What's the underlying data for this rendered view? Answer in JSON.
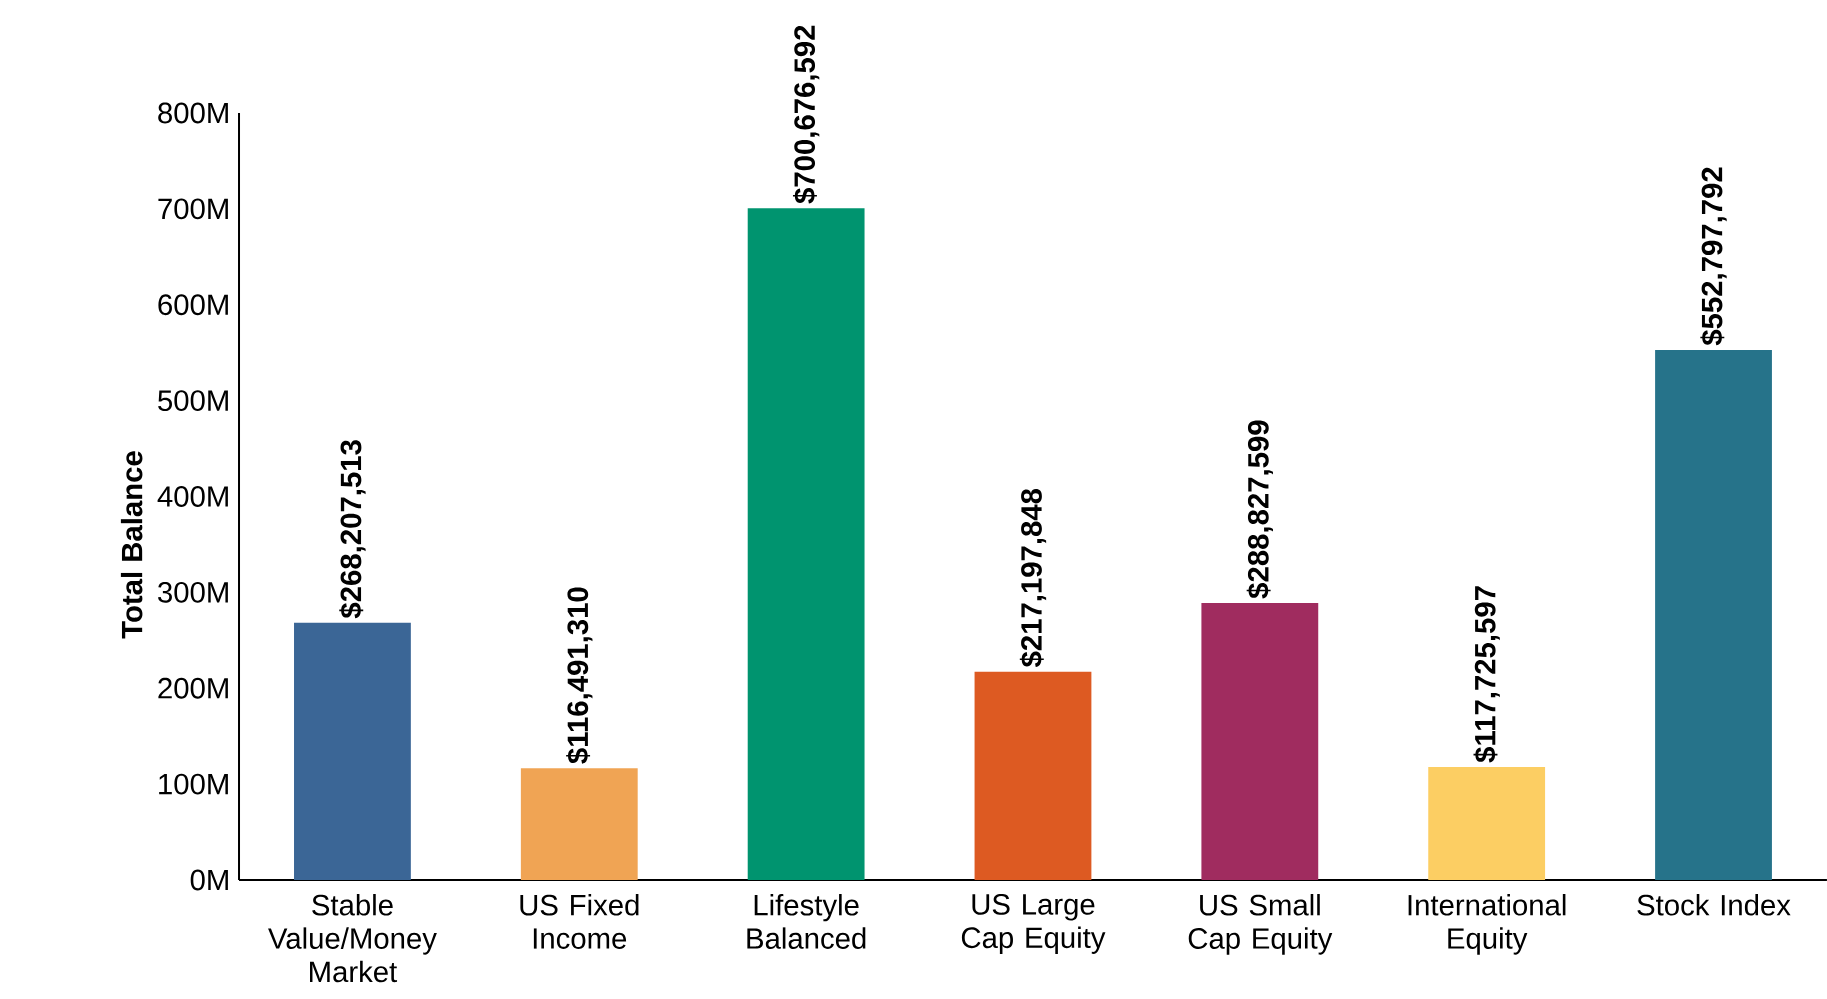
{
  "chart_data": {
    "type": "bar",
    "ylabel": "Total Balance",
    "categories": [
      "Stable Value/Money Market",
      "US Fixed Income",
      "Lifestyle Balanced",
      "US Large Cap Equity",
      "US Small Cap Equity",
      "International Equity",
      "Stock Index"
    ],
    "values": [
      268207513,
      116491310,
      700676592,
      217197848,
      288827599,
      117725597,
      552797792
    ],
    "value_labels": [
      "$268,207,513",
      "$116,491,310",
      "$700,676,592",
      "$217,197,848",
      "$288,827,599",
      "$117,725,597",
      "$552,797,792"
    ],
    "colors": [
      "#3b6696",
      "#f0a454",
      "#00946f",
      "#dd5a22",
      "#a02c5f",
      "#fcce63",
      "#26738a"
    ],
    "ylim": [
      0,
      800000000
    ],
    "yticks": [
      {
        "value": 0,
        "label": "0M"
      },
      {
        "value": 100000000,
        "label": "100M"
      },
      {
        "value": 200000000,
        "label": "200M"
      },
      {
        "value": 300000000,
        "label": "300M"
      },
      {
        "value": 400000000,
        "label": "400M"
      },
      {
        "value": 500000000,
        "label": "500M"
      },
      {
        "value": 600000000,
        "label": "600M"
      },
      {
        "value": 700000000,
        "label": "700M"
      },
      {
        "value": 800000000,
        "label": "800M"
      }
    ],
    "grid": false
  }
}
